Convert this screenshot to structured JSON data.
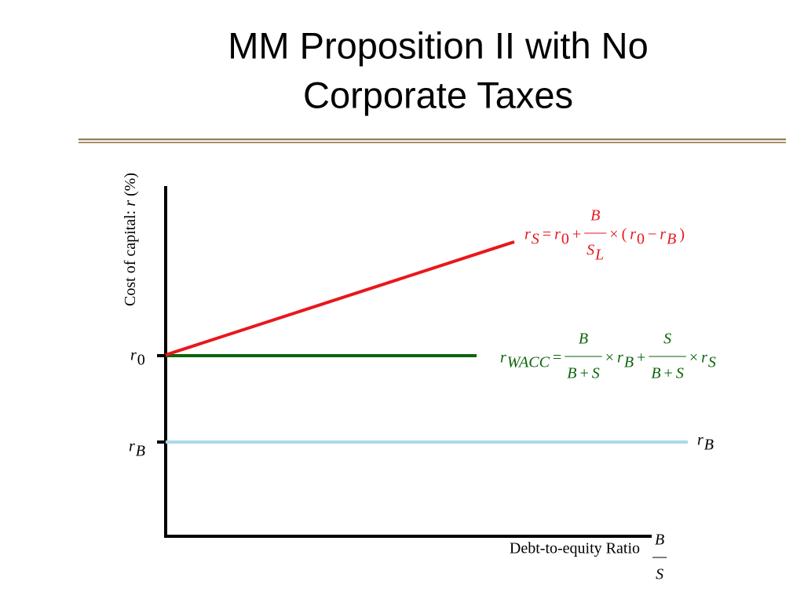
{
  "title": [
    "MM Proposition II with No",
    "Corporate Taxes"
  ],
  "y_axis_label": {
    "text": "Cost of capital: ",
    "variable": "r",
    "unit": " (%)"
  },
  "x_axis_label": {
    "text": "Debt-to-equity Ratio",
    "fraction": {
      "num": [
        "B"
      ],
      "den": [
        "S"
      ]
    }
  },
  "tick_labels": [
    {
      "base": "r",
      "sub": "0"
    },
    {
      "base": "r",
      "sub": "B"
    }
  ],
  "line_labels": {
    "cost_of_equity": [
      {
        "base": "r",
        "sub": "S"
      },
      "=",
      {
        "base": "r",
        "sub": "0"
      },
      "+",
      {
        "num": [
          "B"
        ],
        "den": [
          {
            "base": "S",
            "sub": "L"
          }
        ]
      },
      "×",
      "(",
      {
        "base": "r",
        "sub": "0"
      },
      "−",
      {
        "base": "r",
        "sub": "B"
      },
      ")"
    ],
    "wacc": [
      {
        "base": "r",
        "sub": "WACC"
      },
      "=",
      {
        "num": [
          "B"
        ],
        "den": [
          "B",
          "+",
          "S"
        ]
      },
      "×",
      {
        "base": "r",
        "sub": "B"
      },
      "+",
      {
        "num": [
          "S"
        ],
        "den": [
          "B",
          "+",
          "S"
        ]
      },
      "×",
      {
        "base": "r",
        "sub": "S"
      }
    ],
    "cost_of_debt": [
      {
        "base": "r",
        "sub": "B"
      }
    ]
  }
}
